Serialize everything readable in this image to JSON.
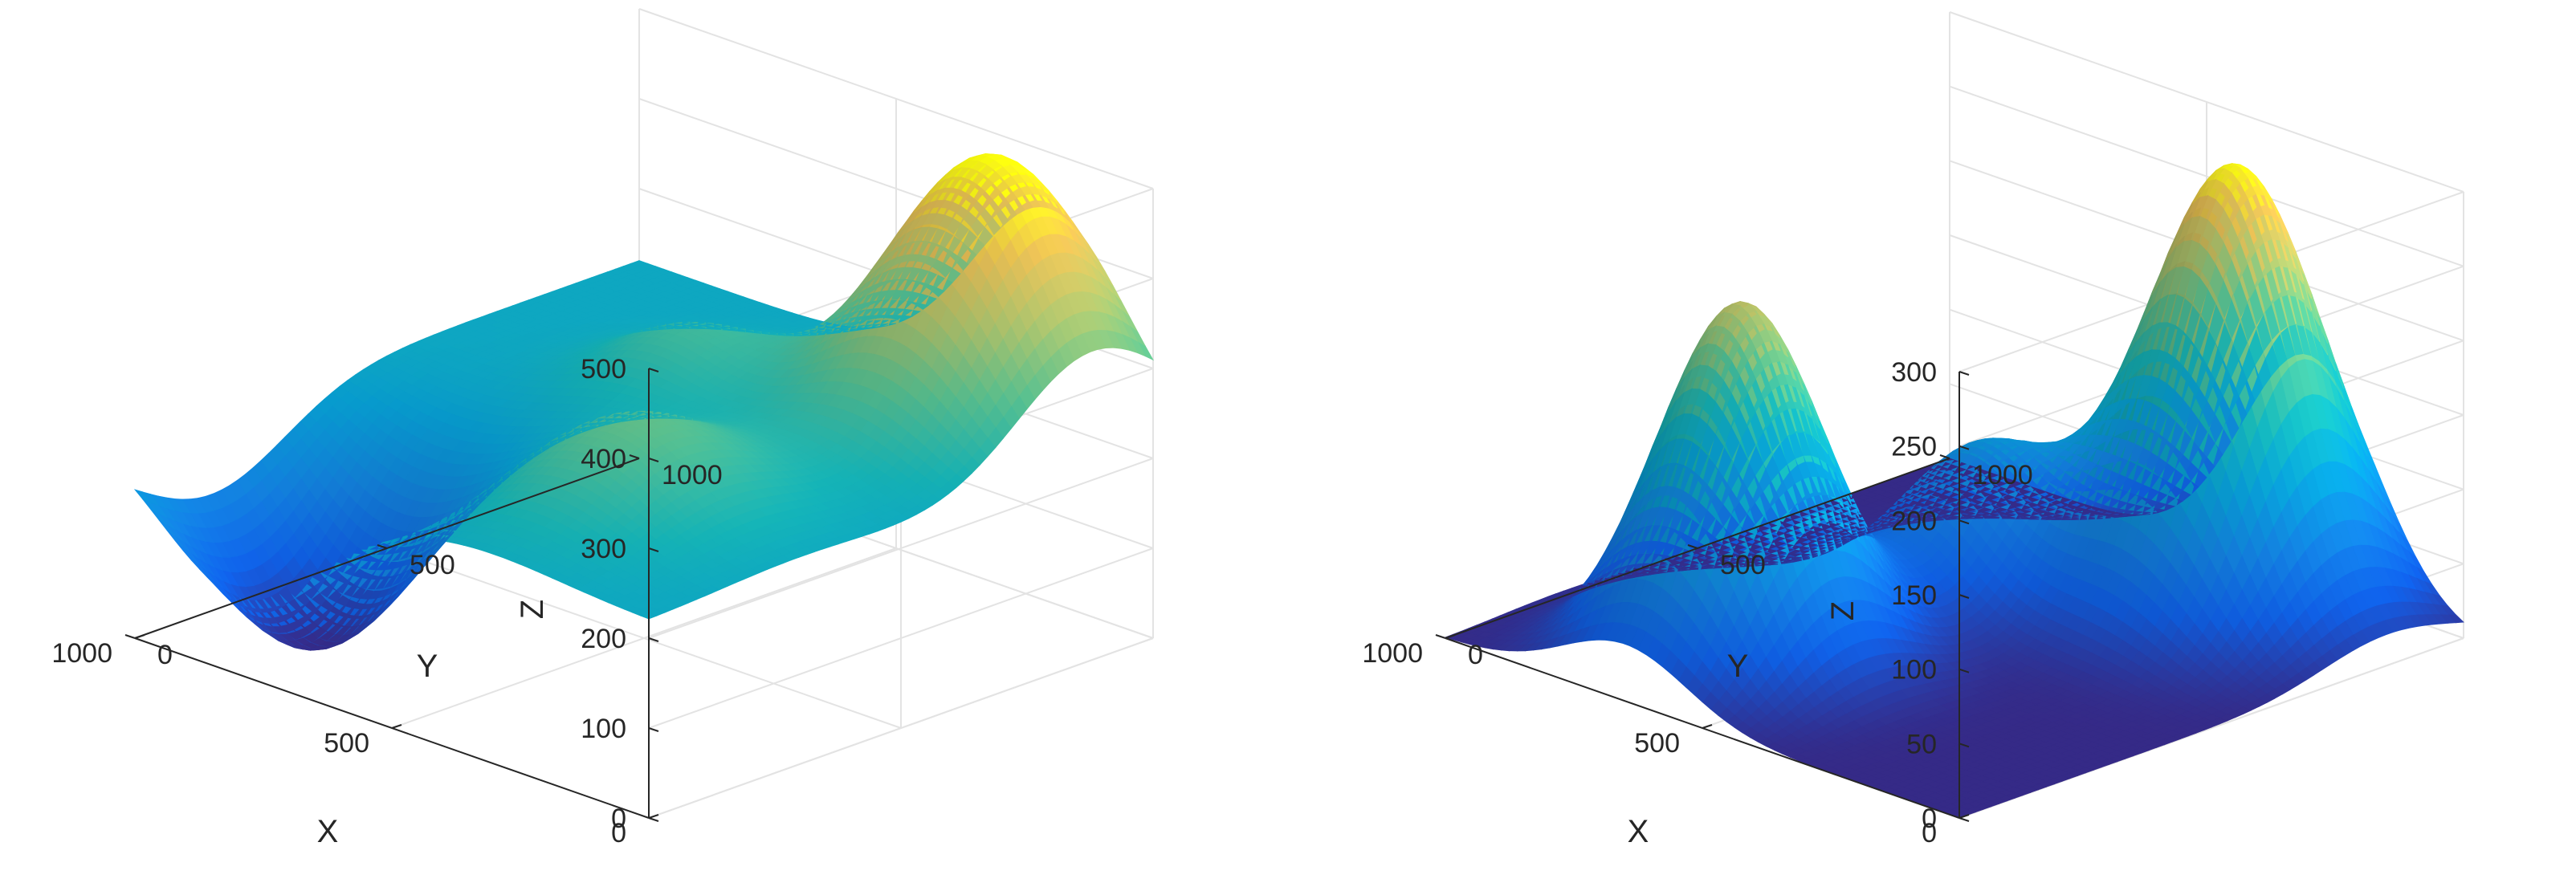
{
  "chart_data": [
    {
      "type": "surface",
      "title": "",
      "xlabel": "X",
      "ylabel": "Y",
      "zlabel": "Z",
      "xlim": [
        0,
        1000
      ],
      "ylim": [
        0,
        1000
      ],
      "zlim": [
        0,
        500
      ],
      "x_ticks": [
        "0",
        "500",
        "1000"
      ],
      "y_ticks": [
        "0",
        "500",
        "1000"
      ],
      "z_ticks": [
        "0",
        "100",
        "200",
        "300",
        "400",
        "500"
      ],
      "grid": true,
      "colormap": "parula",
      "base_level": 220,
      "features": [
        {
          "kind": "peak",
          "x": 200,
          "y": 880,
          "amplitude": 300,
          "spread": 150
        },
        {
          "kind": "peak",
          "x": 320,
          "y": 300,
          "amplitude": 100,
          "spread": 150
        },
        {
          "kind": "peak",
          "x": 600,
          "y": 680,
          "amplitude": 65,
          "spread": 110
        },
        {
          "kind": "valley",
          "x": 800,
          "y": 150,
          "amplitude": -220,
          "spread": 150
        }
      ]
    },
    {
      "type": "surface",
      "title": "",
      "xlabel": "X",
      "ylabel": "Y",
      "zlabel": "Z",
      "xlim": [
        0,
        1000
      ],
      "ylim": [
        0,
        1000
      ],
      "zlim": [
        0,
        300
      ],
      "x_ticks": [
        "0",
        "500",
        "1000"
      ],
      "y_ticks": [
        "0",
        "500",
        "1000"
      ],
      "z_ticks": [
        "0",
        "50",
        "100",
        "150",
        "200",
        "250",
        "300"
      ],
      "grid": true,
      "colormap": "parula",
      "base_level": 0,
      "features": [
        {
          "kind": "peak",
          "x": 300,
          "y": 850,
          "amplitude": 300,
          "spread": 130
        },
        {
          "kind": "peak",
          "x": 650,
          "y": 230,
          "amplitude": 240,
          "spread": 120
        },
        {
          "kind": "peak",
          "x": 600,
          "y": 650,
          "amplitude": 95,
          "spread": 110
        }
      ]
    }
  ]
}
